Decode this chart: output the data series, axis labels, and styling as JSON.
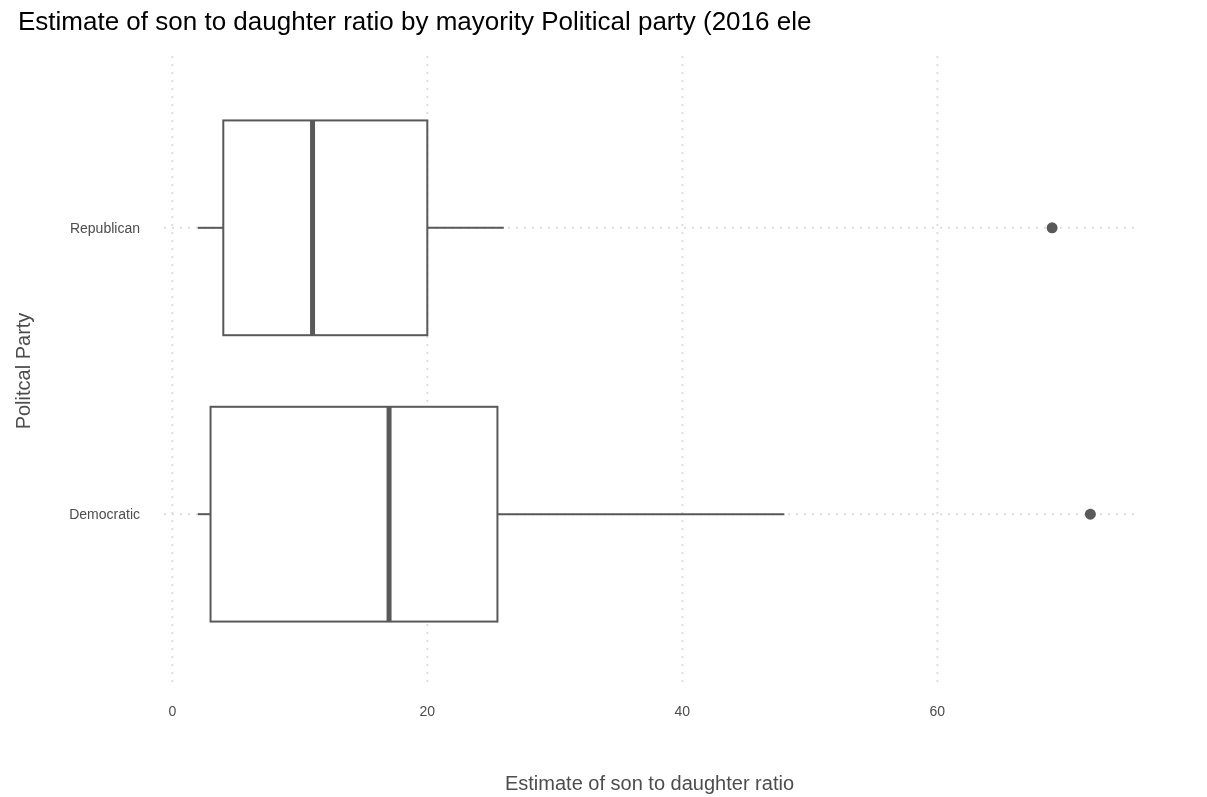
{
  "chart_data": {
    "type": "box",
    "title": "Estimate of son to daughter ratio by mayority Political party (2016 ele",
    "xlabel": "Estimate of son to daughter ratio",
    "ylabel": "Politcal Party",
    "orientation": "horizontal",
    "categories": [
      "Republican",
      "Democratic"
    ],
    "boxes": [
      {
        "low": 2,
        "q1": 4,
        "median": 11,
        "q3": 20,
        "high": 26,
        "outliers": [
          69
        ]
      },
      {
        "low": 2,
        "q1": 3,
        "median": 17,
        "q3": 25.5,
        "high": 48,
        "outliers": [
          72
        ]
      }
    ],
    "color": "#595959",
    "xlim": [
      -0.65,
      75.5
    ],
    "xticks": [
      0,
      20,
      40,
      60
    ],
    "grid": true
  }
}
